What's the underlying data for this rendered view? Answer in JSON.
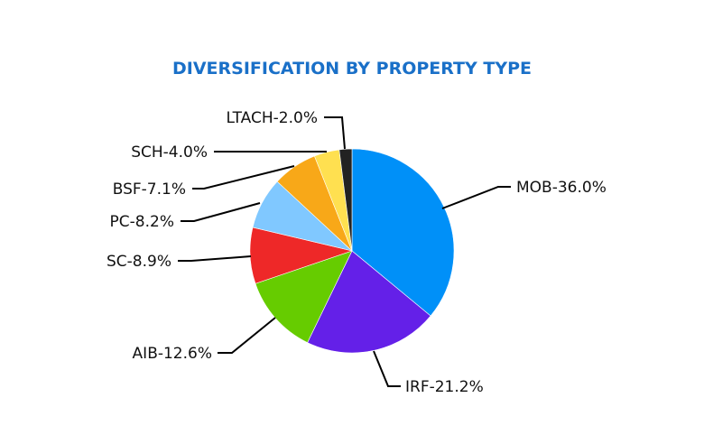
{
  "chart_data": {
    "type": "pie",
    "title": "DIVERSIFICATION BY PROPERTY TYPE",
    "slices": [
      {
        "name": "MOB",
        "value": 36.0,
        "label": "MOB-36.0%",
        "color": "#0090f8"
      },
      {
        "name": "IRF",
        "value": 21.2,
        "label": "IRF-21.2%",
        "color": "#6420e8"
      },
      {
        "name": "AIB",
        "value": 12.6,
        "label": "AIB-12.6%",
        "color": "#66cc00"
      },
      {
        "name": "SC",
        "value": 8.9,
        "label": "SC-8.9%",
        "color": "#ee2828"
      },
      {
        "name": "PC",
        "value": 8.2,
        "label": "PC-8.2%",
        "color": "#80c8ff"
      },
      {
        "name": "BSF",
        "value": 7.1,
        "label": "BSF-7.1%",
        "color": "#f8a818"
      },
      {
        "name": "SCH",
        "value": 4.0,
        "label": "SCH-4.0%",
        "color": "#ffe050"
      },
      {
        "name": "LTACH",
        "value": 2.0,
        "label": "LTACH-2.0%",
        "color": "#222222"
      }
    ],
    "start_angle": "12 o'clock",
    "direction": "clockwise",
    "legend": "none (leader-line labels)"
  }
}
